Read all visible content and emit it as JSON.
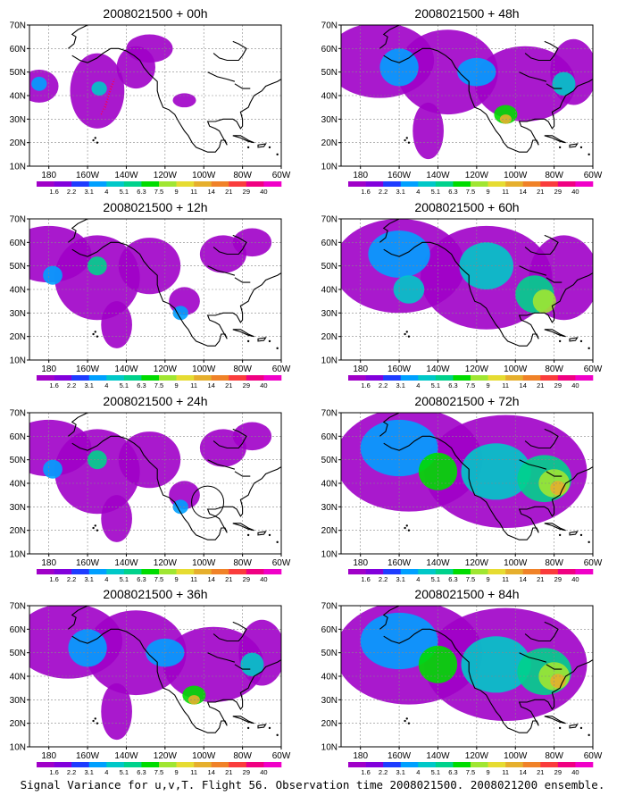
{
  "caption": "Signal Variance for u,v,T. Flight 56. Observation time 2008021500. 2008021200 ensemble.",
  "map_extent": {
    "lon_min": 170,
    "lon_max": 300,
    "lat_min": 10,
    "lat_max": 70
  },
  "x_ticks": [
    "180",
    "160W",
    "140W",
    "120W",
    "100W",
    "80W",
    "60W"
  ],
  "y_ticks": [
    "70N",
    "60N",
    "50N",
    "40N",
    "30N",
    "20N",
    "10N"
  ],
  "colorbar": {
    "labels": [
      "1.6",
      "2.2",
      "3.1",
      "4",
      "5.1",
      "6.3",
      "7.5",
      "9",
      "11",
      "14",
      "21",
      "29",
      "40"
    ],
    "colors": [
      "#a000c8",
      "#8200dc",
      "#1e3cff",
      "#00a0ff",
      "#00c8c8",
      "#00d28c",
      "#00dc00",
      "#a0e632",
      "#e6dc32",
      "#e6af2d",
      "#f08228",
      "#fa3c3c",
      "#f00082",
      "#f000c8"
    ]
  },
  "panels": [
    {
      "title": "2008021500 + 00h",
      "level": 0
    },
    {
      "title": "2008021500 + 48h",
      "level": 2
    },
    {
      "title": "2008021500 + 12h",
      "level": 1
    },
    {
      "title": "2008021500 + 60h",
      "level": 3
    },
    {
      "title": "2008021500 + 24h",
      "level": 1
    },
    {
      "title": "2008021500 + 72h",
      "level": 4
    },
    {
      "title": "2008021500 + 36h",
      "level": 2
    },
    {
      "title": "2008021500 + 84h",
      "level": 4
    }
  ],
  "chart_data": {
    "type": "heatmap",
    "xlabel": "",
    "ylabel": "",
    "grid": true,
    "legend": "colorbar-bottom",
    "series": [
      {
        "name": "2008021500 + 00h",
        "values": []
      },
      {
        "name": "2008021500 + 12h",
        "values": []
      },
      {
        "name": "2008021500 + 24h",
        "values": []
      },
      {
        "name": "2008021500 + 36h",
        "values": []
      },
      {
        "name": "2008021500 + 48h",
        "values": []
      },
      {
        "name": "2008021500 + 60h",
        "values": []
      },
      {
        "name": "2008021500 + 72h",
        "values": []
      },
      {
        "name": "2008021500 + 84h",
        "values": []
      }
    ]
  }
}
